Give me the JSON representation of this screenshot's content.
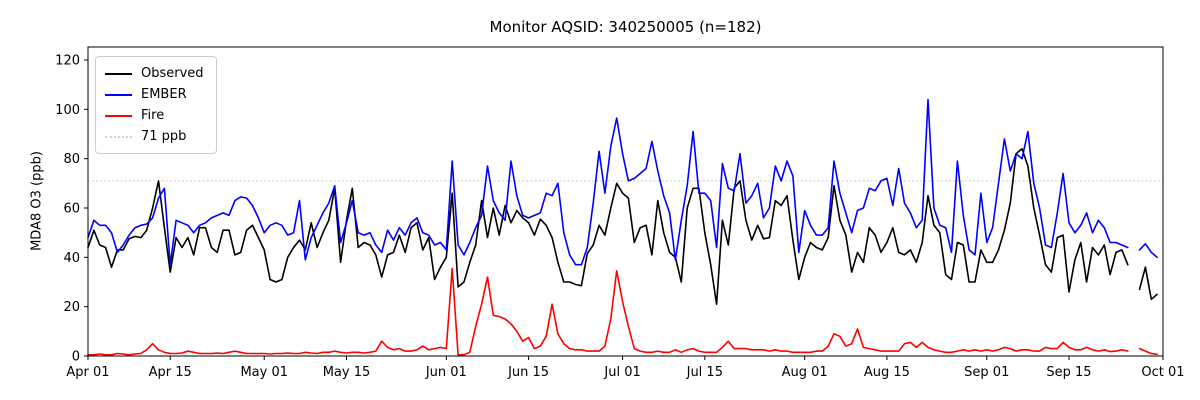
{
  "figure": {
    "title": "Monitor AQSID: 340250005 (n=182)",
    "ylabel": "MDA8 O3 (ppb)"
  },
  "chart_data": {
    "type": "line",
    "title": "Monitor AQSID: 340250005 (n=182)",
    "xlabel": "",
    "ylabel": "MDA8 O3 (ppb)",
    "x_unit": "daily values, day index 0 = Apr 01",
    "n_points": 182,
    "missing_day_index": 178,
    "ylim": [
      0,
      125
    ],
    "y_ticks": [
      0,
      20,
      40,
      60,
      80,
      100,
      120
    ],
    "x_ticks": [
      {
        "day": 0,
        "label": "Apr 01"
      },
      {
        "day": 14,
        "label": "Apr 15"
      },
      {
        "day": 30,
        "label": "May 01"
      },
      {
        "day": 44,
        "label": "May 15"
      },
      {
        "day": 61,
        "label": "Jun 01"
      },
      {
        "day": 75,
        "label": "Jun 15"
      },
      {
        "day": 91,
        "label": "Jul 01"
      },
      {
        "day": 105,
        "label": "Jul 15"
      },
      {
        "day": 122,
        "label": "Aug 01"
      },
      {
        "day": 136,
        "label": "Aug 15"
      },
      {
        "day": 153,
        "label": "Sep 01"
      },
      {
        "day": 167,
        "label": "Sep 15"
      },
      {
        "day": 183,
        "label": "Oct 01"
      }
    ],
    "x_domain_days": 183,
    "grid": false,
    "legend_position": "upper left",
    "reference_line": {
      "value": 71,
      "label": "71 ppb",
      "color": "#cfcfcf",
      "style": "dotted"
    },
    "series": [
      {
        "name": "Observed",
        "color": "#000000",
        "values": [
          44,
          51,
          45,
          44,
          36,
          43,
          43,
          47.5,
          48.5,
          48,
          51,
          60,
          71,
          52,
          34,
          48,
          44,
          48,
          41,
          52,
          52,
          44,
          42,
          51,
          51,
          41,
          42,
          51,
          53,
          48,
          43,
          31,
          30,
          31,
          40,
          44,
          47,
          43,
          54,
          44,
          50,
          55,
          68,
          38,
          55,
          68,
          44,
          46,
          45,
          41,
          32,
          41,
          42,
          49,
          42,
          52,
          54,
          43,
          48,
          31,
          36,
          40,
          66,
          28,
          30,
          38,
          45,
          63,
          48,
          60,
          49,
          61,
          54,
          59,
          56,
          54,
          49,
          55.5,
          53,
          48,
          38,
          30,
          30,
          29,
          28.5,
          41.5,
          45,
          53,
          49,
          60,
          70,
          66,
          64,
          46,
          52,
          53,
          41,
          63,
          50,
          42,
          40,
          30,
          60,
          68,
          68,
          50,
          37,
          21,
          55,
          45,
          68,
          71,
          55,
          47,
          53,
          47.5,
          48,
          63,
          61,
          65,
          47,
          31,
          40,
          46,
          44,
          43,
          48,
          69,
          55,
          49,
          34,
          42,
          38,
          52,
          49,
          42,
          46,
          52,
          42,
          41,
          43,
          38,
          46,
          65,
          53,
          50,
          33,
          31,
          46,
          45,
          30,
          30,
          43,
          38,
          38,
          43,
          51,
          62,
          82,
          84,
          77,
          60,
          49,
          37,
          34,
          48,
          49,
          26,
          39,
          46,
          30,
          44,
          41,
          45,
          33,
          42,
          43,
          37,
          null,
          27,
          36,
          23,
          25
        ]
      },
      {
        "name": "EMBER",
        "color": "#0000ff",
        "values": [
          48,
          55,
          53,
          53,
          50,
          42,
          45,
          49,
          52,
          53,
          53.5,
          56,
          64,
          68,
          37,
          55,
          54,
          53,
          50,
          53,
          54,
          56,
          57,
          58,
          57,
          63,
          64.5,
          64,
          61,
          56,
          50,
          53,
          54,
          53,
          49,
          50,
          63,
          39,
          48,
          53,
          58,
          62,
          69,
          46,
          54,
          63,
          50,
          49,
          50,
          45,
          42,
          51,
          47,
          52,
          49,
          54,
          56,
          50,
          49,
          45,
          46,
          43,
          79,
          45,
          41,
          46,
          52,
          57,
          77,
          63,
          58,
          55,
          79,
          65,
          57,
          56,
          57,
          58,
          66,
          65,
          70,
          50,
          41,
          37,
          37,
          44,
          62,
          83,
          66,
          85,
          96.5,
          82,
          71,
          72,
          74,
          76,
          87,
          75,
          65,
          58,
          39,
          55,
          69,
          91,
          66,
          66,
          63,
          44,
          78,
          68,
          67,
          82,
          62,
          65,
          70,
          56,
          60,
          77,
          71,
          79,
          73,
          42,
          59,
          53,
          49,
          49,
          52,
          79,
          66,
          58,
          50,
          59,
          60,
          68,
          67,
          71,
          72,
          61,
          76,
          62,
          58,
          52,
          55,
          104,
          60,
          53,
          52,
          42,
          79,
          57,
          43,
          41,
          66,
          46,
          52,
          70,
          88,
          75,
          82,
          80,
          91,
          70,
          60,
          45,
          44,
          58,
          74,
          54,
          50,
          53,
          58,
          50,
          55,
          52,
          46,
          46,
          45,
          44,
          null,
          43,
          45.5,
          42,
          40
        ]
      },
      {
        "name": "Fire",
        "color": "#ff0000",
        "values": [
          0.5,
          0.5,
          0.8,
          0.5,
          0.5,
          1,
          0.8,
          0.5,
          0.8,
          1,
          2.5,
          5,
          2.5,
          1.5,
          1,
          1,
          1.2,
          2,
          1.5,
          1,
          1,
          1,
          1.2,
          1,
          1.5,
          2,
          1.5,
          1,
          1,
          1,
          1,
          0.8,
          1,
          1,
          1.2,
          1,
          1,
          1.5,
          1.2,
          1,
          1.5,
          1.5,
          2,
          1.5,
          1.2,
          1.5,
          1.5,
          1.2,
          1.5,
          2,
          6,
          3.5,
          2.5,
          3,
          2,
          2,
          2.5,
          4,
          2.5,
          3,
          3.5,
          3,
          35.5,
          0.5,
          0.5,
          1.5,
          12,
          21,
          32,
          16.5,
          16,
          15,
          13,
          10,
          6,
          7.5,
          3,
          4,
          8,
          21,
          9,
          5,
          3,
          2.5,
          2.5,
          2,
          2,
          2,
          4,
          15,
          34.5,
          22,
          12,
          3,
          2,
          1.5,
          1.5,
          2,
          1.5,
          1.5,
          2.5,
          1.5,
          2.5,
          3,
          2,
          1.5,
          1.5,
          1.5,
          3.5,
          6,
          3,
          3,
          3,
          2.5,
          2.5,
          2.5,
          2,
          2.5,
          2,
          2,
          1.5,
          1.5,
          1.5,
          1.5,
          2,
          2,
          4,
          9,
          8,
          4,
          5,
          11,
          3.5,
          3,
          2.5,
          2,
          2,
          2,
          2,
          5,
          5.5,
          3.5,
          5.5,
          3.5,
          2.5,
          2,
          1.5,
          1.5,
          2,
          2.5,
          2,
          2.5,
          2,
          2.5,
          2,
          2.5,
          3.5,
          3,
          2,
          2.5,
          2.5,
          2,
          2,
          3.5,
          3,
          3,
          5.5,
          3.5,
          2.5,
          2.5,
          3.5,
          2.5,
          2,
          2.5,
          1.8,
          2,
          2.5,
          2,
          null,
          3,
          2,
          1,
          0.7
        ]
      }
    ]
  }
}
